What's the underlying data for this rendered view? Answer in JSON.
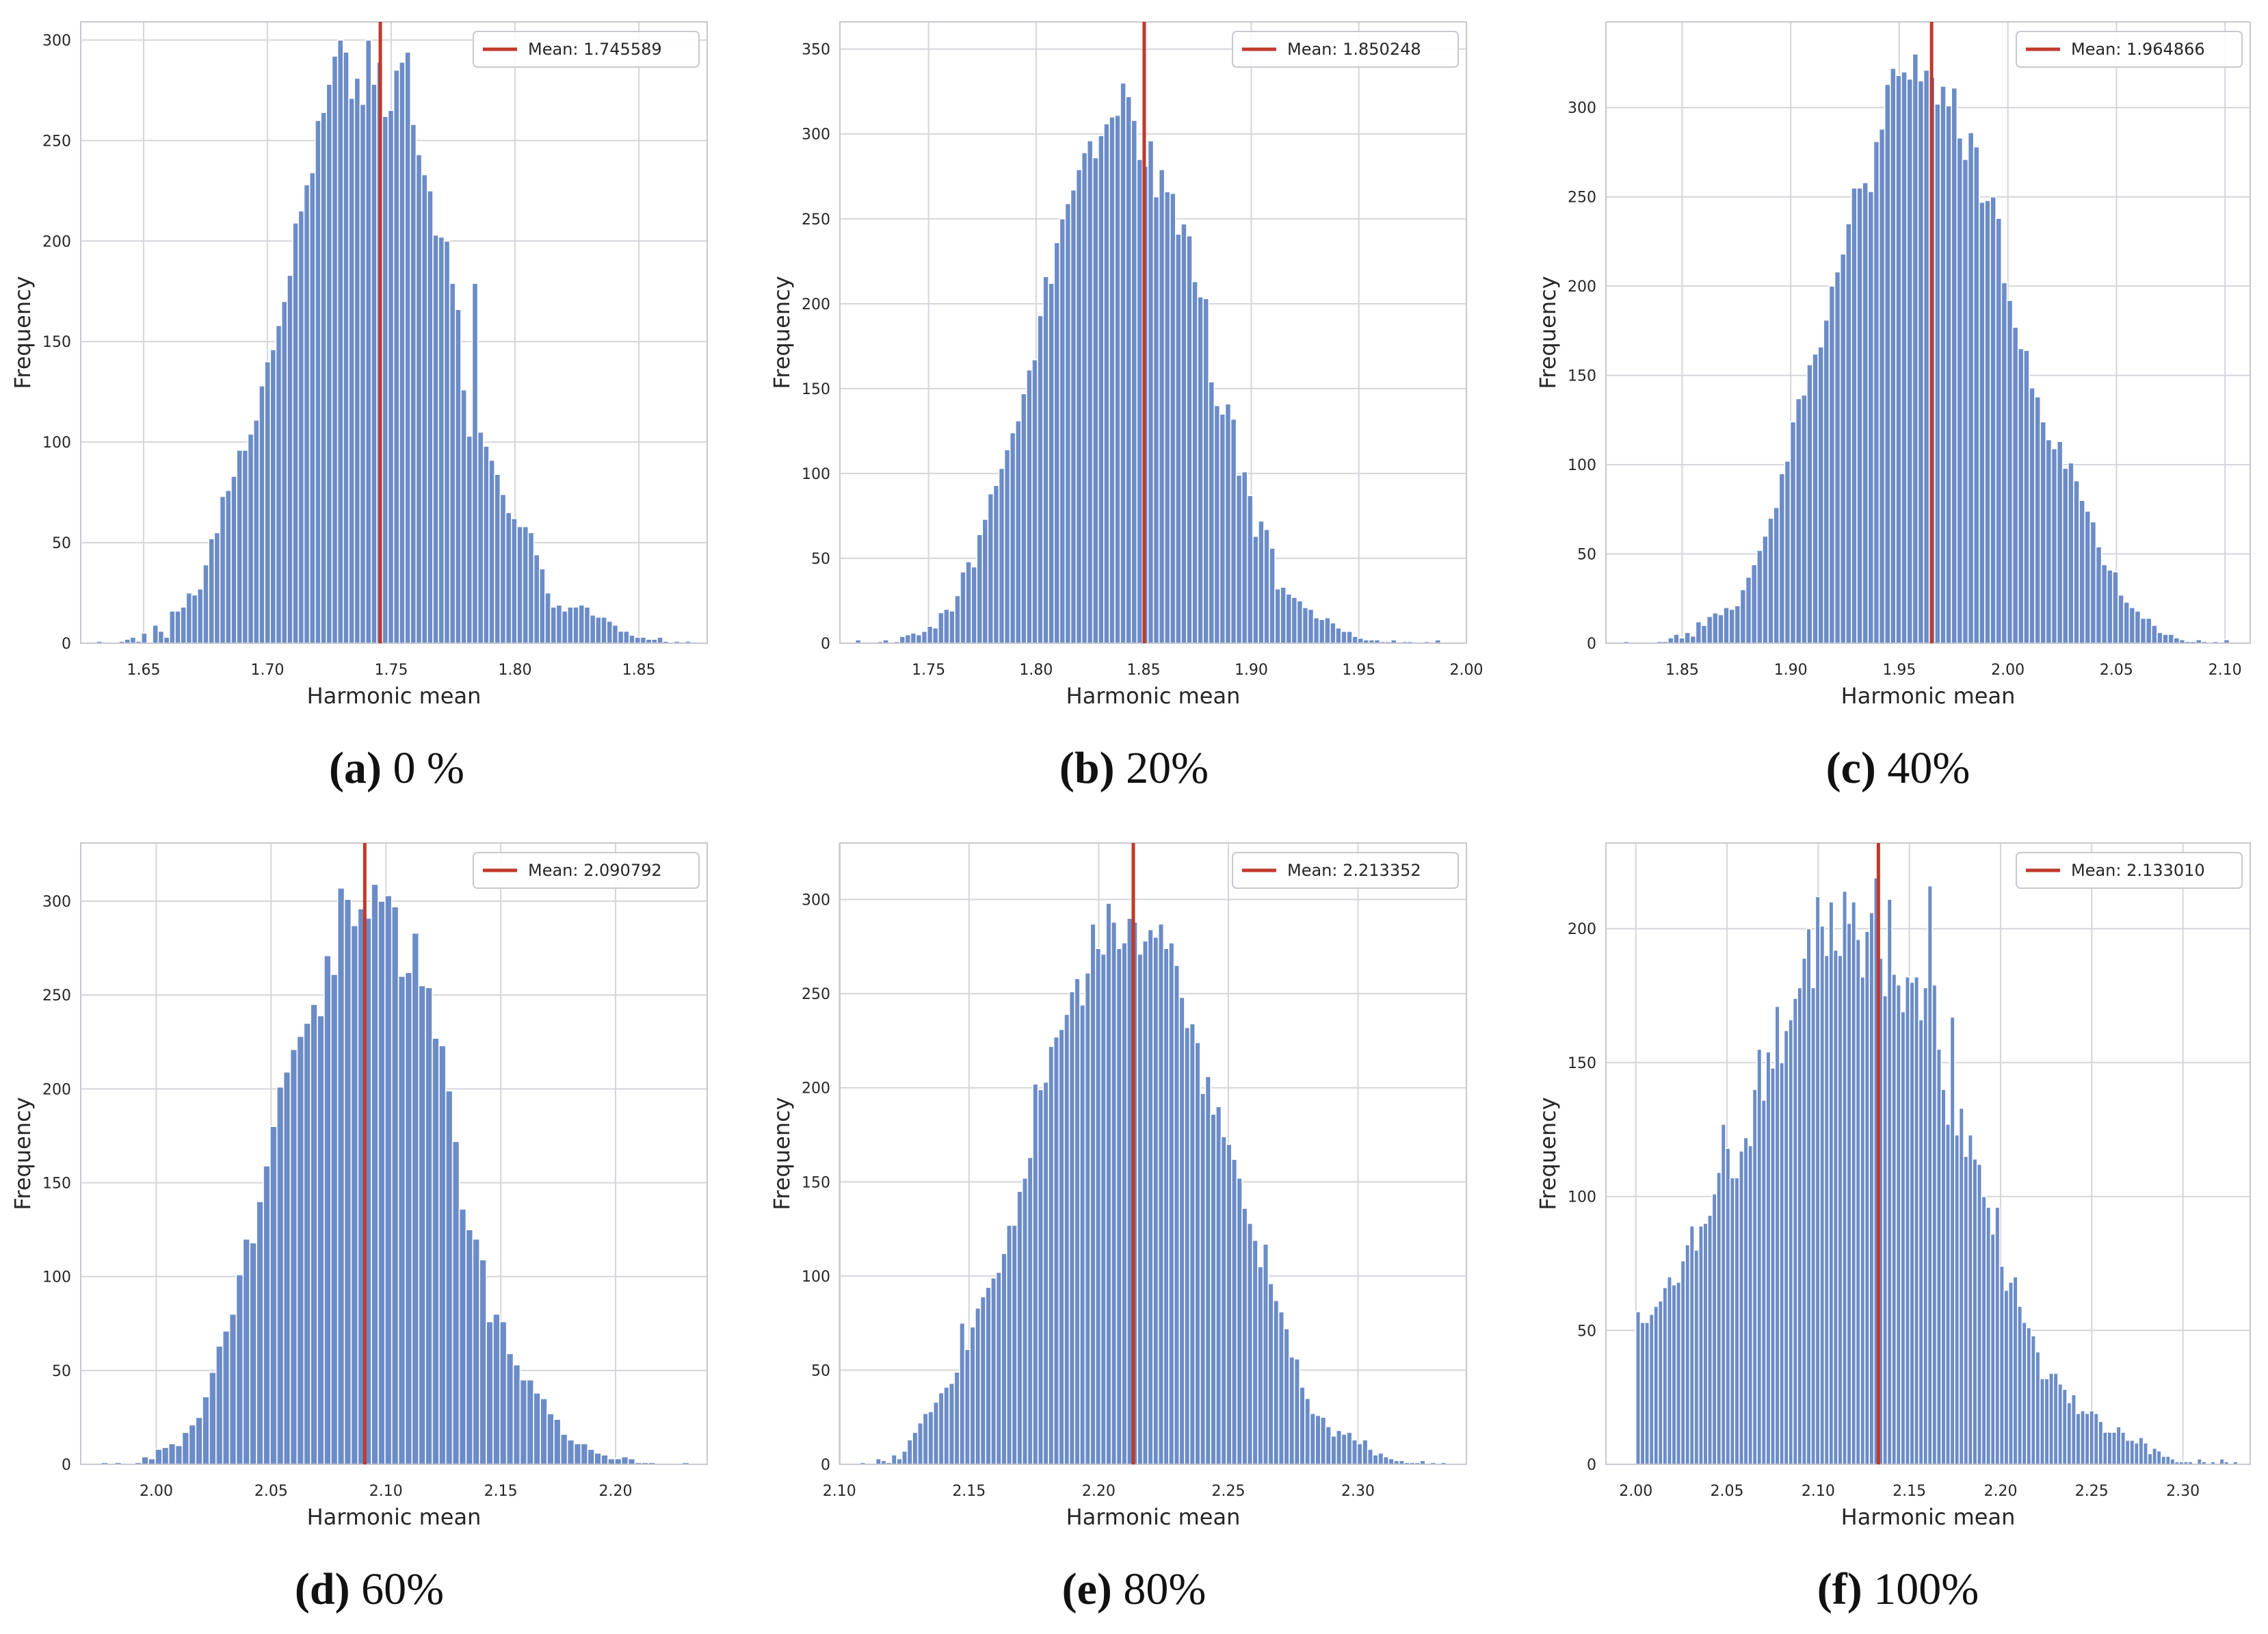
{
  "colors": {
    "bar": "#6b8cc7",
    "bar_edge": "#ffffff",
    "mean_line": "#c0392b",
    "grid": "#d5d5dc",
    "frame": "#c8c8d0",
    "text": "#262626"
  },
  "panels": [
    {
      "id": "a",
      "caption_letter": "(a)",
      "caption_text": " 0 %",
      "chart_data": {
        "type": "bar",
        "title": "",
        "xlabel": "Harmonic mean",
        "ylabel": "Frequency",
        "xlim": [
          1.6246,
          1.8776
        ],
        "ylim": [
          0,
          309
        ],
        "xticks": [
          "1.65",
          "1.70",
          "1.75",
          "1.80",
          "1.85"
        ],
        "yticks": [
          "0",
          "50",
          "100",
          "150",
          "200",
          "250",
          "300"
        ],
        "legend": "Mean: 1.745589",
        "legend_position": "top-right",
        "mean": 1.745589,
        "bin_start": 1.631,
        "bin_end": 1.871,
        "values": [
          1,
          0,
          0,
          0,
          1,
          2,
          3,
          1,
          5,
          0,
          9,
          6,
          3,
          16,
          16,
          18,
          25,
          24,
          27,
          39,
          52,
          55,
          73,
          76,
          83,
          96,
          96,
          104,
          111,
          128,
          140,
          146,
          158,
          170,
          183,
          209,
          215,
          228,
          234,
          260,
          264,
          278,
          292,
          300,
          294,
          271,
          281,
          268,
          300,
          278,
          289,
          262,
          265,
          285,
          289,
          294,
          258,
          243,
          233,
          225,
          203,
          202,
          200,
          179,
          166,
          126,
          103,
          179,
          105,
          98,
          91,
          84,
          74,
          65,
          62,
          58,
          58,
          55,
          44,
          37,
          25,
          18,
          19,
          16,
          18,
          18,
          19,
          18,
          14,
          13,
          13,
          11,
          9,
          6,
          6,
          4,
          3,
          3,
          2,
          2,
          3,
          1,
          0,
          1,
          0,
          1
        ]
      }
    },
    {
      "id": "b",
      "caption_letter": "(b)",
      "caption_text": " 20%",
      "chart_data": {
        "type": "bar",
        "title": "",
        "xlabel": "Harmonic mean",
        "ylabel": "Frequency",
        "xlim": [
          1.7088,
          2.0
        ],
        "ylim": [
          0,
          366
        ],
        "xticks": [
          "1.75",
          "1.80",
          "1.85",
          "1.90",
          "1.95",
          "2.00"
        ],
        "yticks": [
          "0",
          "50",
          "100",
          "150",
          "200",
          "250",
          "300",
          "350"
        ],
        "legend": "Mean: 1.850248",
        "legend_position": "top-right",
        "mean": 1.850248,
        "bin_start": 1.716,
        "bin_end": 1.988,
        "values": [
          2,
          0,
          0,
          0,
          1,
          2,
          0,
          1,
          4,
          5,
          6,
          5,
          7,
          10,
          9,
          18,
          20,
          19,
          28,
          42,
          48,
          45,
          64,
          73,
          88,
          93,
          103,
          114,
          124,
          131,
          147,
          161,
          167,
          193,
          216,
          212,
          236,
          250,
          259,
          267,
          279,
          289,
          296,
          286,
          299,
          306,
          310,
          311,
          330,
          322,
          308,
          285,
          281,
          296,
          263,
          279,
          266,
          265,
          241,
          247,
          240,
          213,
          204,
          203,
          154,
          140,
          135,
          141,
          132,
          99,
          101,
          87,
          63,
          72,
          67,
          56,
          32,
          33,
          29,
          27,
          25,
          21,
          20,
          15,
          14,
          15,
          12,
          9,
          7,
          7,
          4,
          3,
          2,
          2,
          2,
          1,
          1,
          2,
          0,
          1,
          1,
          0,
          0,
          1,
          0,
          2
        ]
      }
    },
    {
      "id": "c",
      "caption_letter": "(c)",
      "caption_text": " 40%",
      "chart_data": {
        "type": "bar",
        "title": "",
        "xlabel": "Harmonic mean",
        "ylabel": "Frequency",
        "xlim": [
          1.8149,
          2.1116
        ],
        "ylim": [
          0,
          348
        ],
        "xticks": [
          "1.85",
          "1.90",
          "1.95",
          "2.00",
          "2.05",
          "2.10"
        ],
        "yticks": [
          "0",
          "50",
          "100",
          "150",
          "200",
          "250",
          "300"
        ],
        "legend": "Mean: 1.964866",
        "legend_position": "top-right",
        "mean": 1.964866,
        "bin_start": 1.823,
        "bin_end": 2.102,
        "values": [
          1,
          0,
          0,
          0,
          0,
          0,
          1,
          1,
          3,
          5,
          3,
          6,
          4,
          12,
          10,
          15,
          17,
          16,
          20,
          19,
          21,
          30,
          37,
          44,
          52,
          60,
          70,
          76,
          95,
          102,
          124,
          137,
          139,
          156,
          162,
          166,
          181,
          200,
          208,
          218,
          235,
          255,
          255,
          258,
          253,
          281,
          288,
          313,
          322,
          318,
          320,
          316,
          330,
          315,
          321,
          317,
          302,
          312,
          301,
          311,
          283,
          271,
          286,
          278,
          247,
          248,
          250,
          238,
          202,
          192,
          177,
          165,
          164,
          143,
          138,
          124,
          114,
          109,
          113,
          98,
          101,
          91,
          80,
          74,
          68,
          54,
          44,
          41,
          40,
          27,
          23,
          20,
          18,
          14,
          14,
          10,
          6,
          5,
          5,
          3,
          2,
          1,
          1,
          2,
          1,
          0,
          1,
          0,
          2
        ]
      }
    },
    {
      "id": "d",
      "caption_letter": "(d)",
      "caption_text": " 60%",
      "chart_data": {
        "type": "bar",
        "title": "",
        "xlabel": "Harmonic mean",
        "ylabel": "Frequency",
        "xlim": [
          1.9671,
          2.2399
        ],
        "ylim": [
          0,
          331
        ],
        "xticks": [
          "2.00",
          "2.05",
          "2.10",
          "2.15",
          "2.20"
        ],
        "yticks": [
          "0",
          "50",
          "100",
          "150",
          "200",
          "250",
          "300"
        ],
        "legend": "Mean: 2.090792",
        "legend_position": "top-right",
        "mean": 2.090792,
        "bin_start": 1.976,
        "bin_end": 2.232,
        "values": [
          1,
          0,
          1,
          0,
          0,
          1,
          4,
          3,
          8,
          9,
          11,
          10,
          17,
          21,
          25,
          36,
          49,
          63,
          71,
          80,
          101,
          120,
          118,
          140,
          159,
          180,
          201,
          209,
          221,
          228,
          235,
          245,
          239,
          271,
          261,
          307,
          301,
          287,
          296,
          291,
          309,
          300,
          303,
          297,
          260,
          262,
          283,
          255,
          254,
          227,
          223,
          199,
          172,
          136,
          125,
          120,
          109,
          76,
          80,
          76,
          59,
          53,
          45,
          45,
          38,
          35,
          27,
          24,
          16,
          13,
          11,
          11,
          8,
          6,
          5,
          3,
          3,
          4,
          3,
          1,
          1,
          1,
          0,
          0,
          0,
          0,
          1
        ]
      }
    },
    {
      "id": "e",
      "caption_letter": "(e)",
      "caption_text": " 80%",
      "chart_data": {
        "type": "bar",
        "title": "",
        "xlabel": "Harmonic mean",
        "ylabel": "Frequency",
        "xlim": [
          2.1002,
          2.3418
        ],
        "ylim": [
          0,
          330
        ],
        "xticks": [
          "2.10",
          "2.15",
          "2.20",
          "2.25",
          "2.30"
        ],
        "yticks": [
          "0",
          "50",
          "100",
          "150",
          "200",
          "250",
          "300"
        ],
        "legend": "Mean: 2.213352",
        "legend_position": "top-right",
        "mean": 2.213352,
        "bin_start": 2.108,
        "bin_end": 2.334,
        "values": [
          1,
          0,
          0,
          3,
          2,
          1,
          5,
          3,
          7,
          13,
          17,
          22,
          27,
          28,
          33,
          38,
          41,
          43,
          49,
          75,
          61,
          73,
          83,
          89,
          94,
          99,
          102,
          112,
          127,
          127,
          145,
          152,
          163,
          202,
          199,
          203,
          222,
          227,
          231,
          239,
          251,
          258,
          244,
          261,
          287,
          274,
          271,
          298,
          288,
          274,
          277,
          290,
          288,
          271,
          278,
          284,
          280,
          287,
          274,
          277,
          265,
          248,
          232,
          234,
          224,
          197,
          206,
          186,
          190,
          174,
          170,
          162,
          152,
          136,
          128,
          119,
          105,
          117,
          96,
          87,
          81,
          72,
          57,
          56,
          41,
          35,
          27,
          26,
          25,
          20,
          15,
          18,
          16,
          17,
          13,
          11,
          13,
          8,
          5,
          6,
          4,
          3,
          2,
          2,
          1,
          1,
          1,
          2,
          0,
          1,
          0,
          1
        ]
      }
    },
    {
      "id": "f",
      "caption_letter": "(f)",
      "caption_text": " 100%",
      "chart_data": {
        "type": "bar",
        "title": "",
        "xlabel": "Harmonic mean",
        "ylabel": "Frequency",
        "xlim": [
          1.9836,
          2.3369
        ],
        "ylim": [
          0,
          232
        ],
        "xticks": [
          "2.00",
          "2.05",
          "2.10",
          "2.15",
          "2.20",
          "2.25",
          "2.30"
        ],
        "yticks": [
          "0",
          "50",
          "100",
          "150",
          "200"
        ],
        "legend": "Mean: 2.133010",
        "legend_position": "top-right",
        "mean": 2.13301,
        "bin_start": 2.0,
        "bin_end": 2.33,
        "values": [
          57,
          53,
          53,
          56,
          59,
          61,
          66,
          70,
          67,
          68,
          76,
          82,
          89,
          80,
          89,
          90,
          93,
          101,
          109,
          127,
          118,
          107,
          107,
          117,
          122,
          119,
          140,
          155,
          136,
          154,
          148,
          171,
          150,
          162,
          166,
          174,
          178,
          189,
          200,
          178,
          212,
          201,
          190,
          210,
          192,
          190,
          214,
          202,
          210,
          196,
          182,
          199,
          206,
          219,
          189,
          175,
          211,
          183,
          179,
          169,
          182,
          180,
          182,
          166,
          178,
          216,
          179,
          155,
          140,
          127,
          167,
          123,
          133,
          115,
          123,
          114,
          112,
          100,
          96,
          86,
          96,
          74,
          65,
          68,
          70,
          59,
          53,
          51,
          48,
          42,
          32,
          32,
          34,
          34,
          30,
          28,
          23,
          26,
          19,
          20,
          19,
          20,
          19,
          16,
          12,
          12,
          12,
          14,
          12,
          9,
          9,
          8,
          10,
          8,
          4,
          6,
          5,
          3,
          3,
          2,
          1,
          1,
          1,
          1,
          0,
          2,
          1,
          0,
          1,
          0,
          2,
          1,
          0,
          1
        ]
      }
    }
  ]
}
